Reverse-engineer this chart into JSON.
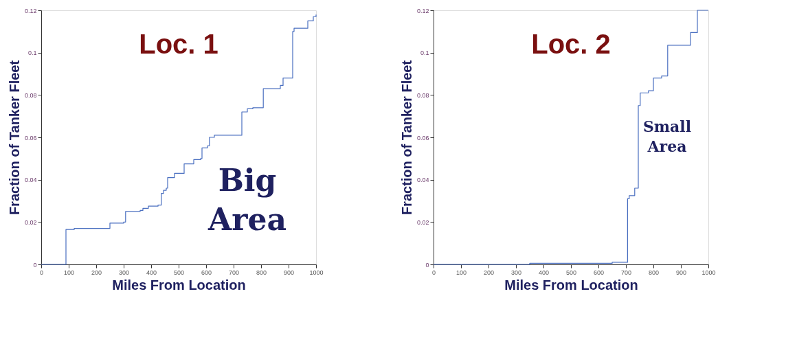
{
  "chart_data": [
    {
      "type": "step",
      "title": "Loc. 1",
      "xlabel": "Miles From Location",
      "ylabel": "Fraction of Tanker Fleet",
      "annotations": [
        "Big Area"
      ],
      "xlim": [
        0,
        1000
      ],
      "xticks": [
        0,
        100,
        200,
        300,
        400,
        500,
        600,
        700,
        800,
        900,
        1000
      ],
      "ylim": [
        0,
        0.12
      ],
      "yticks": [
        0,
        0.02,
        0.04,
        0.06,
        0.08,
        0.1,
        0.12
      ],
      "grid": false,
      "series": [
        {
          "color": "#4a6fc0",
          "x": [
            0,
            90,
            120,
            250,
            300,
            307,
            360,
            370,
            390,
            425,
            437,
            445,
            455,
            460,
            485,
            520,
            555,
            580,
            585,
            605,
            612,
            630,
            730,
            750,
            770,
            808,
            870,
            880,
            915,
            920,
            970,
            990,
            1000
          ],
          "values": [
            0,
            0.0165,
            0.017,
            0.0195,
            0.02,
            0.025,
            0.0255,
            0.0265,
            0.0275,
            0.028,
            0.0335,
            0.035,
            0.036,
            0.041,
            0.043,
            0.0475,
            0.0495,
            0.05,
            0.055,
            0.056,
            0.06,
            0.061,
            0.072,
            0.0735,
            0.074,
            0.083,
            0.0845,
            0.088,
            0.11,
            0.1115,
            0.115,
            0.117,
            0.118
          ]
        }
      ]
    },
    {
      "type": "step",
      "title": "Loc. 2",
      "xlabel": "Miles From Location",
      "ylabel": "Fraction of Tanker Fleet",
      "annotations": [
        "Small Area"
      ],
      "xlim": [
        0,
        1000
      ],
      "xticks": [
        0,
        100,
        200,
        300,
        400,
        500,
        600,
        700,
        800,
        900,
        1000
      ],
      "ylim": [
        0,
        0.12
      ],
      "yticks": [
        0,
        0.02,
        0.04,
        0.06,
        0.08,
        0.1,
        0.12
      ],
      "grid": false,
      "series": [
        {
          "color": "#4a6fc0",
          "x": [
            0,
            350,
            650,
            706,
            712,
            732,
            745,
            752,
            782,
            800,
            830,
            852,
            935,
            960,
            1000
          ],
          "values": [
            0,
            0.0005,
            0.001,
            0.031,
            0.0325,
            0.036,
            0.075,
            0.081,
            0.082,
            0.088,
            0.089,
            0.1035,
            0.1095,
            0.12,
            0.12
          ]
        }
      ]
    }
  ]
}
